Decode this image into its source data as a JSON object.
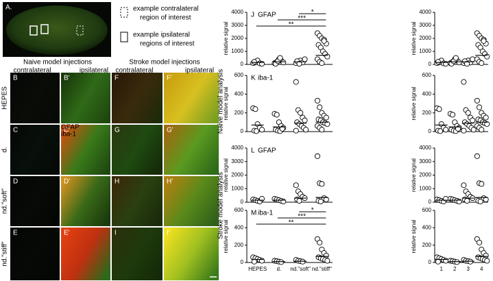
{
  "figure": {
    "panel_A": "A.",
    "legend": [
      {
        "lines": [
          "example contralateral",
          "region of interest"
        ]
      },
      {
        "lines": [
          "example ipsilateral",
          "regions of interest"
        ]
      }
    ],
    "model_headers": [
      "Naive model injections",
      "Stroke model injections"
    ],
    "column_headers": [
      "contralateral",
      "ipsilateral",
      "contralateral",
      "ipsilateral"
    ],
    "row_labels": [
      "HEPES",
      "d.",
      "nd.\"soft\"",
      "nd.\"stiff\""
    ],
    "panel_labels": [
      [
        "B",
        "B'",
        "F",
        "F'"
      ],
      [
        "C",
        "C'",
        "G",
        "G'"
      ],
      [
        "D",
        "D'",
        "H",
        "H'"
      ],
      [
        "E",
        "E'",
        "I",
        "I'"
      ]
    ],
    "channel_labels": [
      {
        "text": "GFAP",
        "color": "#33cc33"
      },
      {
        "text": "iba-1",
        "color": "#ee2222"
      }
    ],
    "section_labels": [
      "Naive model analysis",
      "Stroke model analysis"
    ]
  },
  "chart_data": [
    {
      "type": "dotplot",
      "panel": "J",
      "marker": "GFAP",
      "marker_color": "#33cc33",
      "ylabel": "relative signal",
      "categories": [
        null,
        null,
        null,
        null
      ],
      "groups": [
        [
          100,
          150,
          300,
          80,
          50,
          200
        ],
        [
          100,
          200,
          400,
          300,
          150,
          50,
          250,
          500
        ],
        [
          100,
          200,
          300,
          150,
          400,
          250,
          50
        ],
        [
          2400,
          2200,
          2000,
          1900,
          1600,
          1500,
          1300,
          1000,
          800,
          600,
          400,
          200,
          100,
          1800
        ]
      ],
      "means": [
        150,
        200,
        200,
        700
      ],
      "ylim": [
        0,
        4000
      ],
      "yticks": [
        0,
        1000,
        2000,
        3000,
        4000
      ],
      "significance": [
        {
          "label": "*",
          "from": 2,
          "to": 3
        },
        {
          "label": "***",
          "from": 1,
          "to": 3
        },
        {
          "label": "**",
          "from": 0,
          "to": 3
        }
      ]
    },
    {
      "type": "dotplot",
      "panel": "K",
      "marker": "iba-1",
      "marker_color": "#ee2222",
      "ylabel": "relative signal",
      "categories": [
        null,
        null,
        null,
        null
      ],
      "groups": [
        [
          250,
          240,
          80,
          40,
          20,
          10,
          5
        ],
        [
          190,
          180,
          100,
          60,
          40,
          20,
          10,
          5,
          30
        ],
        [
          530,
          230,
          200,
          150,
          120,
          100,
          80,
          60,
          40,
          20,
          10
        ],
        [
          330,
          260,
          200,
          170,
          150,
          130,
          120,
          100,
          90,
          80,
          60,
          40,
          20
        ]
      ],
      "means": [
        70,
        50,
        90,
        100
      ],
      "ylim": [
        0,
        600
      ],
      "yticks": [
        0,
        200,
        400,
        600
      ],
      "significance": []
    },
    {
      "type": "dotplot",
      "panel": "L",
      "marker": "GFAP",
      "marker_color": "#33cc33",
      "ylabel": "relative signal",
      "categories": [
        null,
        null,
        null,
        null
      ],
      "groups": [
        [
          200,
          150,
          100,
          50,
          250
        ],
        [
          250,
          200,
          150,
          100,
          50
        ],
        [
          1250,
          800,
          600,
          400,
          300,
          200,
          100
        ],
        [
          3400,
          1400,
          1350,
          300,
          200,
          100,
          50
        ]
      ],
      "means": [
        150,
        150,
        300,
        350
      ],
      "ylim": [
        0,
        4000
      ],
      "yticks": [
        0,
        1000,
        2000,
        3000,
        4000
      ],
      "significance": []
    },
    {
      "type": "dotplot",
      "panel": "M",
      "marker": "iba-1",
      "marker_color": "#ee2222",
      "ylabel": "relative signal",
      "categories": [
        "HEPES",
        "d.",
        "nd.\"soft\"",
        "nd.\"stiff\""
      ],
      "groups": [
        [
          60,
          50,
          40,
          30,
          20,
          10
        ],
        [
          20,
          15,
          10,
          5
        ],
        [
          30,
          20,
          15,
          10
        ],
        [
          270,
          230,
          150,
          110,
          80,
          60,
          50,
          40,
          30,
          20
        ]
      ],
      "means": [
        35,
        10,
        15,
        70
      ],
      "ylim": [
        0,
        600
      ],
      "yticks": [
        0,
        200,
        400,
        600
      ],
      "significance": [
        {
          "label": "*",
          "from": 2,
          "to": 3
        },
        {
          "label": "***",
          "from": 1,
          "to": 3
        },
        {
          "label": "**",
          "from": 0,
          "to": 3
        }
      ]
    },
    {
      "type": "dotplot",
      "ylabel": "relative signal",
      "categories": [
        null,
        null,
        null,
        null
      ],
      "groups": [
        [
          100,
          150,
          300,
          80,
          50,
          200
        ],
        [
          100,
          200,
          400,
          300,
          150,
          50,
          250,
          500
        ],
        [
          100,
          200,
          300,
          150,
          400,
          250,
          50
        ],
        [
          2400,
          2200,
          2000,
          1900,
          1600,
          1500,
          1300,
          1000,
          800,
          600,
          400,
          200,
          100,
          1800
        ]
      ],
      "means": [
        150,
        200,
        200,
        700
      ],
      "ylim": [
        0,
        4000
      ],
      "yticks": [
        0,
        1000,
        2000,
        3000,
        4000
      ],
      "significance": []
    },
    {
      "type": "dotplot",
      "ylabel": "relative signal",
      "categories": [
        null,
        null,
        null,
        null
      ],
      "groups": [
        [
          250,
          240,
          80,
          40,
          20,
          10,
          5
        ],
        [
          190,
          180,
          100,
          60,
          40,
          20,
          10,
          5,
          30
        ],
        [
          530,
          230,
          200,
          150,
          120,
          100,
          80,
          60,
          40,
          20,
          10
        ],
        [
          330,
          260,
          200,
          170,
          150,
          130,
          120,
          100,
          90,
          80,
          60,
          40,
          20
        ]
      ],
      "means": [
        70,
        50,
        90,
        100
      ],
      "ylim": [
        0,
        600
      ],
      "yticks": [
        0,
        200,
        400,
        600
      ],
      "significance": []
    },
    {
      "type": "dotplot",
      "ylabel": "relative signal",
      "categories": [
        null,
        null,
        null,
        null
      ],
      "groups": [
        [
          200,
          150,
          100,
          50,
          250
        ],
        [
          250,
          200,
          150,
          100,
          50
        ],
        [
          1250,
          800,
          600,
          400,
          300,
          200,
          100
        ],
        [
          3400,
          1400,
          1350,
          300,
          200,
          100,
          50
        ]
      ],
      "means": [
        150,
        150,
        300,
        350
      ],
      "ylim": [
        0,
        4000
      ],
      "yticks": [
        0,
        1000,
        2000,
        3000,
        4000
      ],
      "significance": []
    },
    {
      "type": "dotplot",
      "ylabel": "relative signal",
      "categories": [
        "1",
        "2",
        "3",
        "4"
      ],
      "groups": [
        [
          60,
          50,
          40,
          30,
          20,
          10
        ],
        [
          20,
          15,
          10,
          5
        ],
        [
          30,
          20,
          15,
          10
        ],
        [
          270,
          230,
          150,
          110,
          80,
          60,
          50,
          40,
          30,
          20
        ]
      ],
      "means": [
        35,
        10,
        15,
        70
      ],
      "ylim": [
        0,
        600
      ],
      "yticks": [
        0,
        200,
        400,
        600
      ],
      "significance": []
    }
  ]
}
